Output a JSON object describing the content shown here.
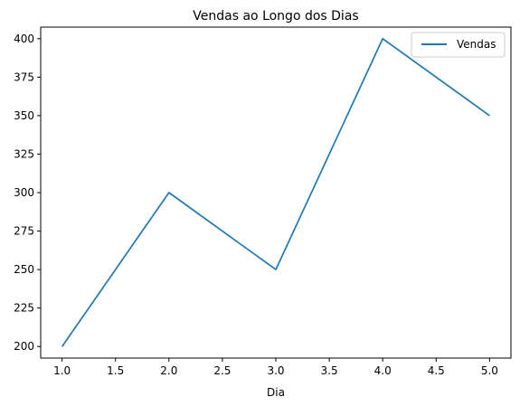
{
  "chart_data": {
    "type": "line",
    "title": "Vendas ao Longo dos Dias",
    "xlabel": "Dia",
    "ylabel": "",
    "x": [
      1.0,
      2.0,
      3.0,
      4.0,
      5.0
    ],
    "series": [
      {
        "name": "Vendas",
        "values": [
          200,
          300,
          250,
          400,
          350
        ],
        "color": "#1f77b4"
      }
    ],
    "xlim": [
      0.8,
      5.2
    ],
    "ylim": [
      192.5,
      407.5
    ],
    "xticks": [
      "1.0",
      "1.5",
      "2.0",
      "2.5",
      "3.0",
      "3.5",
      "4.0",
      "4.5",
      "5.0"
    ],
    "xtick_values": [
      1.0,
      1.5,
      2.0,
      2.5,
      3.0,
      3.5,
      4.0,
      4.5,
      5.0
    ],
    "yticks": [
      "200",
      "225",
      "250",
      "275",
      "300",
      "325",
      "350",
      "375",
      "400"
    ],
    "ytick_values": [
      200,
      225,
      250,
      275,
      300,
      325,
      350,
      375,
      400
    ],
    "grid": false,
    "legend_position": "top-right"
  }
}
